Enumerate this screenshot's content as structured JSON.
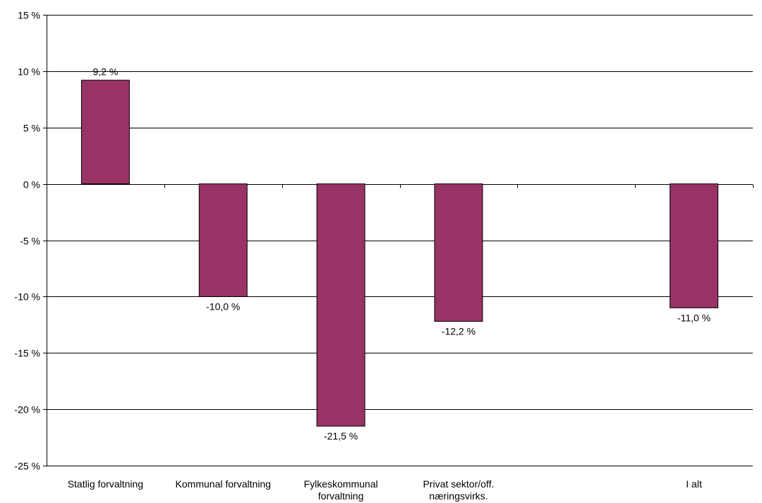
{
  "chart_data": {
    "type": "bar",
    "categories": [
      [
        "Statlig forvaltning"
      ],
      [
        "Kommunal forvaltning"
      ],
      [
        "Fylkeskommunal",
        "forvaltning"
      ],
      [
        "Privat sektor/off.",
        "næringsvirks."
      ],
      [
        ""
      ],
      [
        "I alt"
      ]
    ],
    "values": [
      9.2,
      -10.0,
      -21.5,
      -12.2,
      null,
      -11.0
    ],
    "data_labels": [
      "9,2 %",
      "-10,0 %",
      "-21,5 %",
      "-12,2 %",
      "",
      "-11,0 %"
    ],
    "ylim": [
      -25,
      15
    ],
    "y_ticks": [
      15,
      10,
      5,
      0,
      -5,
      -10,
      -15,
      -20,
      -25
    ],
    "y_tick_labels": [
      "15 %",
      "10 %",
      "5 %",
      "0 %",
      "-5 %",
      "-10 %",
      "-15 %",
      "-20 %",
      "-25 %"
    ],
    "grid": true,
    "legend": "none",
    "colors": {
      "bar": "#993366",
      "bar_stroke": "#000000",
      "grid": "#000000"
    }
  }
}
